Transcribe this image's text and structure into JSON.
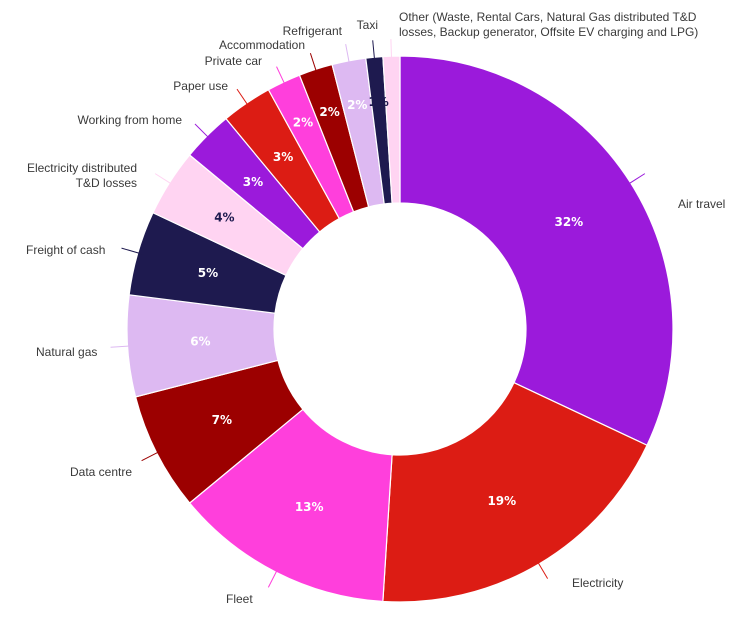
{
  "chart_data": {
    "type": "pie",
    "donut": true,
    "title": "",
    "legend": "none",
    "slices": [
      {
        "label": "Air travel",
        "value": 32,
        "display": "32%",
        "color": "#9b1adb",
        "label_color": "#ffffff"
      },
      {
        "label": "Electricity",
        "value": 19,
        "display": "19%",
        "color": "#dc1c14",
        "label_color": "#ffffff"
      },
      {
        "label": "Fleet",
        "value": 13,
        "display": "13%",
        "color": "#ff3fdc",
        "label_color": "#ffffff"
      },
      {
        "label": "Data centre",
        "value": 7,
        "display": "7%",
        "color": "#9c0000",
        "label_color": "#ffffff"
      },
      {
        "label": "Natural gas",
        "value": 6,
        "display": "6%",
        "color": "#ddb9f2",
        "label_color": "#ffffff"
      },
      {
        "label": "Freight of cash",
        "value": 5,
        "display": "5%",
        "color": "#1e1a4f",
        "label_color": "#ffffff"
      },
      {
        "label": "Electricity distributed T&D losses",
        "value": 4,
        "display": "4%",
        "color": "#ffd4f2",
        "label_color": "#1e1a4f"
      },
      {
        "label": "Working from home",
        "value": 3,
        "display": "3%",
        "color": "#9b1adb",
        "label_color": "#ffffff"
      },
      {
        "label": "Paper use",
        "value": 3,
        "display": "3%",
        "color": "#dc1c14",
        "label_color": "#ffffff"
      },
      {
        "label": "Private car",
        "value": 2,
        "display": "2%",
        "color": "#ff3fdc",
        "label_color": "#ffffff"
      },
      {
        "label": "Accommodation",
        "value": 2,
        "display": "2%",
        "color": "#9c0000",
        "label_color": "#ffffff"
      },
      {
        "label": "Refrigerant",
        "value": 2,
        "display": "2%",
        "color": "#ddb9f2",
        "label_color": "#ffffff"
      },
      {
        "label": "Taxi",
        "value": 1,
        "display": "1%",
        "color": "#1e1a4f",
        "label_color": "#1e1a4f"
      },
      {
        "label": "Other (Waste, Rental Cars, Natural Gas distributed T&D losses, Backup generator, Offsite EV charging and LPG)",
        "value": 1,
        "display": "",
        "color": "#ffd4f2",
        "label_color": "#1e1a4f"
      }
    ]
  }
}
